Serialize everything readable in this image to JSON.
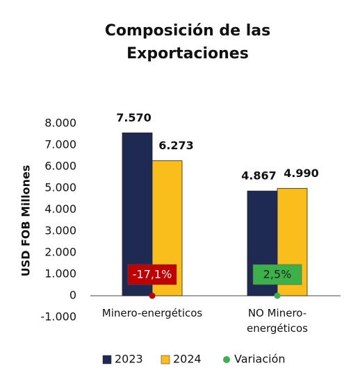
{
  "chart_data": {
    "type": "bar",
    "title": "Composición de las Exportaciones",
    "y_label": "USD  FOB Millones",
    "categories": [
      "Minero-energéticos",
      "NO Minero-energéticos"
    ],
    "series": [
      {
        "name": "2023",
        "color": "#1f2a52",
        "values": [
          7570,
          4867
        ],
        "value_labels": [
          "7.570",
          "4.867"
        ]
      },
      {
        "name": "2024",
        "color": "#f9bd1c",
        "values": [
          6273,
          4990
        ],
        "value_labels": [
          "6.273",
          "4.990"
        ]
      }
    ],
    "variation": {
      "name": "Variación",
      "color": "#3cb04a",
      "values": [
        -17.1,
        2.5
      ],
      "value_labels": [
        "-17,1%",
        "2,5%"
      ],
      "colors": [
        "#c00000",
        "#3cb04a"
      ]
    },
    "ylim": [
      -1000,
      8000
    ],
    "yticks": [
      {
        "value": -1000,
        "label": "-1.000"
      },
      0,
      {
        "value": 1000,
        "label": "1.000"
      },
      {
        "value": 2000,
        "label": "2.000"
      },
      {
        "value": 3000,
        "label": "3.000"
      },
      {
        "value": 4000,
        "label": "4.000"
      },
      {
        "value": 5000,
        "label": "5.000"
      },
      {
        "value": 6000,
        "label": "6.000"
      },
      {
        "value": 7000,
        "label": "7.000"
      },
      {
        "value": 8000,
        "label": "8.000"
      }
    ],
    "legend": "bottom"
  }
}
